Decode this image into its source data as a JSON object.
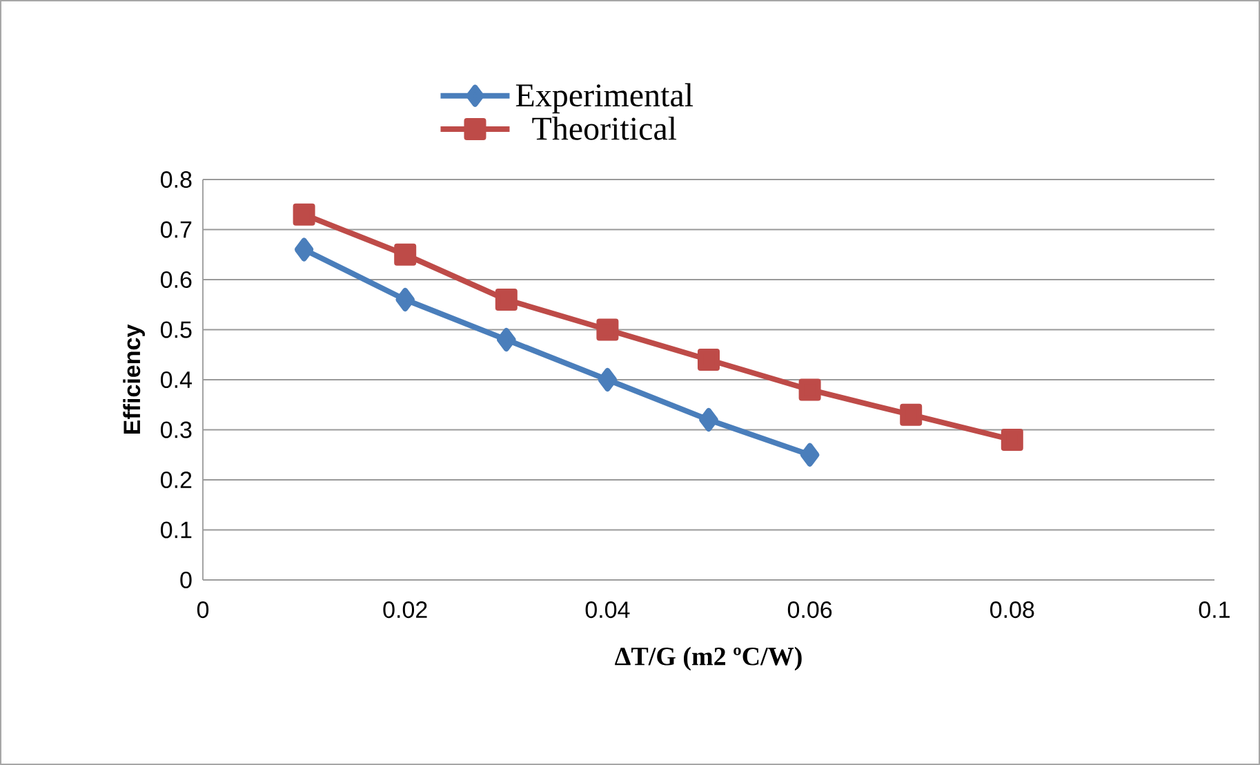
{
  "chart_data": {
    "type": "line",
    "xlabel": "ΔT/G (m2 ºC/W)",
    "ylabel": "Efficiency",
    "xlim": [
      0,
      0.1
    ],
    "xticks": [
      0,
      0.02,
      0.04,
      0.06,
      0.08,
      0.1
    ],
    "ylim": [
      0,
      0.8
    ],
    "yticks": [
      0,
      0.1,
      0.2,
      0.3,
      0.4,
      0.5,
      0.6,
      0.7,
      0.8
    ],
    "grid": "y",
    "legend": "top",
    "line_style": "solid",
    "series": [
      {
        "name": "Experimental",
        "color": "#4a7ebb",
        "marker": "diamond",
        "x": [
          0.01,
          0.02,
          0.03,
          0.04,
          0.05,
          0.06
        ],
        "values": [
          0.66,
          0.56,
          0.48,
          0.4,
          0.32,
          0.25
        ]
      },
      {
        "name": "Theoritical",
        "color": "#be4b48",
        "marker": "square",
        "x": [
          0.01,
          0.02,
          0.03,
          0.04,
          0.05,
          0.06,
          0.07,
          0.08
        ],
        "values": [
          0.73,
          0.65,
          0.56,
          0.5,
          0.44,
          0.38,
          0.33,
          0.28
        ]
      }
    ]
  }
}
